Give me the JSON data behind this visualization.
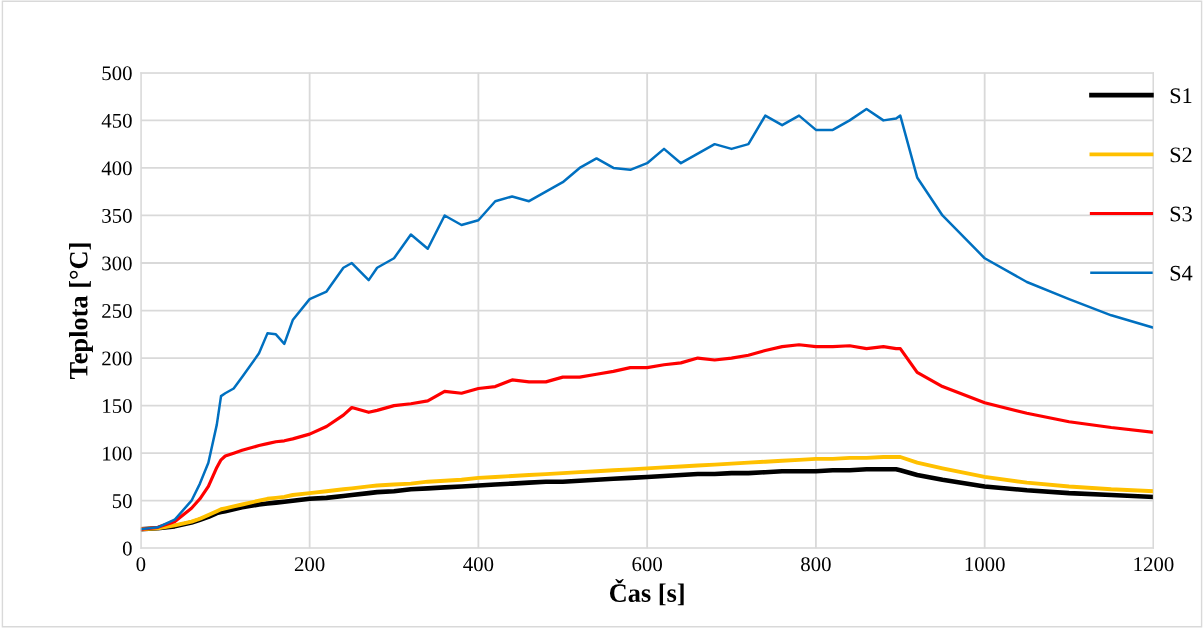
{
  "chart_data": {
    "type": "line",
    "xlabel": "Čas [s]",
    "ylabel": "Teplota [°C]",
    "x": [
      0,
      20,
      40,
      60,
      70,
      80,
      90,
      95,
      100,
      110,
      120,
      140,
      150,
      160,
      170,
      180,
      200,
      220,
      240,
      250,
      270,
      280,
      300,
      320,
      340,
      360,
      380,
      400,
      420,
      440,
      460,
      480,
      500,
      520,
      540,
      560,
      580,
      600,
      620,
      640,
      660,
      680,
      700,
      720,
      740,
      760,
      780,
      800,
      820,
      840,
      860,
      880,
      895,
      900,
      920,
      950,
      1000,
      1050,
      1100,
      1150,
      1200
    ],
    "series": [
      {
        "name": "S1",
        "color": "#000000",
        "values": [
          20,
          21,
          23,
          27,
          30,
          33,
          37,
          38,
          39,
          41,
          43,
          46,
          47,
          48,
          49,
          50,
          52,
          53,
          55,
          56,
          58,
          59,
          60,
          62,
          63,
          64,
          65,
          66,
          67,
          68,
          69,
          70,
          70,
          71,
          72,
          73,
          74,
          75,
          76,
          77,
          78,
          78,
          79,
          79,
          80,
          81,
          81,
          81,
          82,
          82,
          83,
          83,
          83,
          82,
          77,
          72,
          65,
          61,
          58,
          56,
          54
        ]
      },
      {
        "name": "S2",
        "color": "#ffc000",
        "values": [
          20,
          21,
          24,
          28,
          31,
          35,
          39,
          41,
          42,
          44,
          46,
          50,
          52,
          53,
          54,
          56,
          58,
          60,
          62,
          63,
          65,
          66,
          67,
          68,
          70,
          71,
          72,
          74,
          75,
          76,
          77,
          78,
          79,
          80,
          81,
          82,
          83,
          84,
          85,
          86,
          87,
          88,
          89,
          90,
          91,
          92,
          93,
          94,
          94,
          95,
          95,
          96,
          96,
          96,
          90,
          84,
          75,
          69,
          65,
          62,
          60
        ]
      },
      {
        "name": "S3",
        "color": "#ff0000",
        "values": [
          20,
          22,
          28,
          42,
          52,
          65,
          85,
          93,
          97,
          100,
          103,
          108,
          110,
          112,
          113,
          115,
          120,
          128,
          140,
          148,
          143,
          145,
          150,
          152,
          155,
          165,
          163,
          168,
          170,
          177,
          175,
          175,
          180,
          180,
          183,
          186,
          190,
          190,
          193,
          195,
          200,
          198,
          200,
          203,
          208,
          212,
          214,
          212,
          212,
          213,
          210,
          212,
          210,
          210,
          185,
          170,
          153,
          142,
          133,
          127,
          122
        ]
      },
      {
        "name": "S4",
        "color": "#0070c0",
        "values": [
          20,
          22,
          30,
          50,
          68,
          90,
          130,
          160,
          163,
          168,
          180,
          205,
          226,
          225,
          215,
          240,
          262,
          270,
          295,
          300,
          282,
          295,
          305,
          330,
          315,
          350,
          340,
          345,
          365,
          370,
          365,
          375,
          385,
          400,
          410,
          400,
          398,
          405,
          420,
          405,
          415,
          425,
          420,
          425,
          455,
          445,
          455,
          440,
          440,
          450,
          462,
          450,
          452,
          455,
          390,
          350,
          305,
          280,
          262,
          245,
          232
        ]
      }
    ],
    "xlim": [
      0,
      1200
    ],
    "xticks": [
      0,
      200,
      400,
      600,
      800,
      1000,
      1200
    ],
    "ylim": [
      0,
      500
    ],
    "yticks": [
      0,
      50,
      100,
      150,
      200,
      250,
      300,
      350,
      400,
      450,
      500
    ],
    "grid": true,
    "legend": "right",
    "line_style": "solid",
    "marker": "none"
  }
}
